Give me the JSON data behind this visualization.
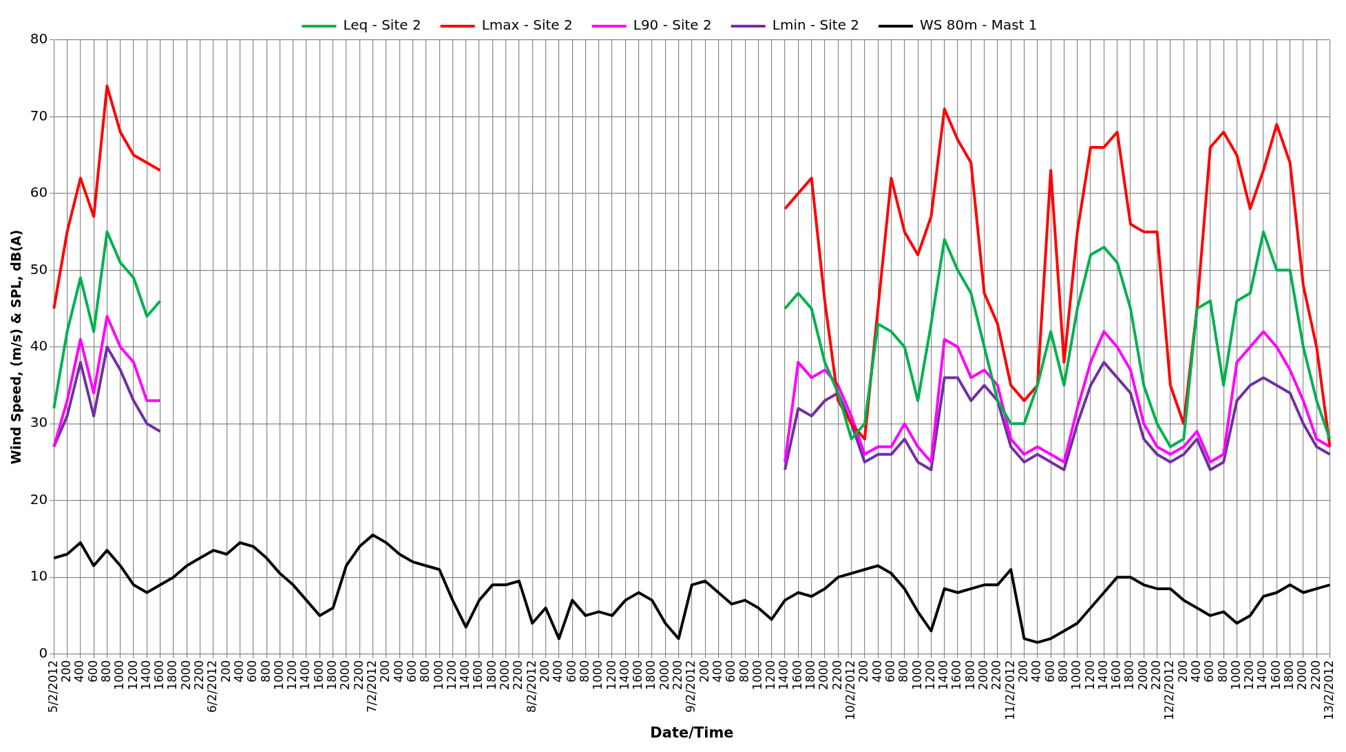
{
  "chart_data": {
    "type": "line",
    "xlabel": "Date/Time",
    "ylabel": "Wind Speed, (m/s) & SPL, dB(A)",
    "legend": "top",
    "grid": true,
    "marker": "none",
    "line_style": "solid",
    "ylim": [
      0,
      80
    ],
    "yticks": [
      0,
      10,
      20,
      30,
      40,
      50,
      60,
      70,
      80
    ],
    "categories": [
      "5/2/2012",
      "200",
      "400",
      "600",
      "800",
      "1000",
      "1200",
      "1400",
      "1600",
      "1800",
      "2000",
      "2200",
      "6/2/2012",
      "200",
      "400",
      "600",
      "800",
      "1000",
      "1200",
      "1400",
      "1600",
      "1800",
      "2000",
      "2200",
      "7/2/2012",
      "200",
      "400",
      "600",
      "800",
      "1000",
      "1200",
      "1400",
      "1600",
      "1800",
      "2000",
      "2200",
      "8/2/2012",
      "200",
      "400",
      "600",
      "800",
      "1000",
      "1200",
      "1400",
      "1600",
      "1800",
      "2000",
      "2200",
      "9/2/2012",
      "200",
      "400",
      "600",
      "800",
      "1000",
      "1200",
      "1400",
      "1600",
      "1800",
      "2000",
      "2200",
      "10/2/2012",
      "200",
      "400",
      "600",
      "800",
      "1000",
      "1200",
      "1400",
      "1600",
      "1800",
      "2000",
      "2200",
      "11/2/2012",
      "200",
      "400",
      "600",
      "800",
      "1000",
      "1200",
      "1400",
      "1600",
      "1800",
      "2000",
      "2200",
      "12/2/2012",
      "200",
      "400",
      "600",
      "800",
      "1000",
      "1200",
      "1400",
      "1600",
      "1800",
      "2000",
      "2200",
      "13/2/2012"
    ],
    "series": [
      {
        "name": "Leq - Site 2",
        "color": "#00b050",
        "values": [
          32,
          42,
          49,
          42,
          55,
          51,
          49,
          44,
          46,
          null,
          null,
          null,
          null,
          null,
          null,
          null,
          null,
          null,
          null,
          null,
          null,
          null,
          null,
          null,
          null,
          null,
          null,
          null,
          null,
          null,
          null,
          null,
          null,
          null,
          null,
          null,
          null,
          null,
          null,
          null,
          null,
          null,
          null,
          null,
          null,
          null,
          null,
          null,
          null,
          null,
          null,
          null,
          null,
          null,
          null,
          45,
          47,
          45,
          38,
          34,
          28,
          30,
          43,
          42,
          40,
          33,
          43,
          54,
          50,
          47,
          40,
          33,
          30,
          30,
          35,
          42,
          35,
          45,
          52,
          53,
          51,
          45,
          35,
          30,
          27,
          28,
          45,
          46,
          35,
          46,
          47,
          55,
          50,
          50,
          40,
          33,
          28
        ]
      },
      {
        "name": "Lmax - Site 2",
        "color": "#ff0000",
        "values": [
          45,
          55,
          62,
          57,
          74,
          68,
          65,
          64,
          63,
          null,
          null,
          null,
          null,
          null,
          null,
          null,
          null,
          null,
          null,
          null,
          null,
          null,
          null,
          null,
          null,
          null,
          null,
          null,
          null,
          null,
          null,
          null,
          null,
          null,
          null,
          null,
          null,
          null,
          null,
          null,
          null,
          null,
          null,
          null,
          null,
          null,
          null,
          null,
          null,
          null,
          null,
          null,
          null,
          null,
          null,
          58,
          60,
          62,
          46,
          33,
          30,
          28,
          45,
          62,
          55,
          52,
          57,
          71,
          67,
          64,
          47,
          43,
          35,
          33,
          35,
          63,
          38,
          55,
          66,
          66,
          68,
          56,
          55,
          55,
          35,
          30,
          45,
          66,
          68,
          65,
          58,
          63,
          69,
          64,
          48,
          40,
          27
        ]
      },
      {
        "name": "L90 - Site 2",
        "color": "#ff00ff",
        "values": [
          27,
          33,
          41,
          34,
          44,
          40,
          38,
          33,
          33,
          null,
          null,
          null,
          null,
          null,
          null,
          null,
          null,
          null,
          null,
          null,
          null,
          null,
          null,
          null,
          null,
          null,
          null,
          null,
          null,
          null,
          null,
          null,
          null,
          null,
          null,
          null,
          null,
          null,
          null,
          null,
          null,
          null,
          null,
          null,
          null,
          null,
          null,
          null,
          null,
          null,
          null,
          null,
          null,
          null,
          null,
          25,
          38,
          36,
          37,
          35,
          31,
          26,
          27,
          27,
          30,
          27,
          25,
          41,
          40,
          36,
          37,
          35,
          28,
          26,
          27,
          26,
          25,
          32,
          38,
          42,
          40,
          37,
          30,
          27,
          26,
          27,
          29,
          25,
          26,
          38,
          40,
          42,
          40,
          37,
          33,
          28,
          27
        ]
      },
      {
        "name": "Lmin - Site 2",
        "color": "#7030a0",
        "values": [
          27,
          31,
          38,
          31,
          40,
          37,
          33,
          30,
          29,
          null,
          null,
          null,
          null,
          null,
          null,
          null,
          null,
          null,
          null,
          null,
          null,
          null,
          null,
          null,
          null,
          null,
          null,
          null,
          null,
          null,
          null,
          null,
          null,
          null,
          null,
          null,
          null,
          null,
          null,
          null,
          null,
          null,
          null,
          null,
          null,
          null,
          null,
          null,
          null,
          null,
          null,
          null,
          null,
          null,
          null,
          24,
          32,
          31,
          33,
          34,
          30,
          25,
          26,
          26,
          28,
          25,
          24,
          36,
          36,
          33,
          35,
          33,
          27,
          25,
          26,
          25,
          24,
          30,
          35,
          38,
          36,
          34,
          28,
          26,
          25,
          26,
          28,
          24,
          25,
          33,
          35,
          36,
          35,
          34,
          30,
          27,
          26
        ]
      },
      {
        "name": "WS 80m - Mast 1",
        "color": "#000000",
        "values": [
          12.5,
          13,
          14.5,
          11.5,
          13.5,
          11.5,
          9,
          8,
          9,
          10,
          11.5,
          12.5,
          13.5,
          13,
          14.5,
          14,
          12.5,
          10.5,
          9,
          7,
          5,
          6,
          11.5,
          14,
          15.5,
          14.5,
          13,
          12,
          11.5,
          11,
          7,
          3.5,
          7,
          9,
          9,
          9.5,
          4,
          6,
          2,
          7,
          5,
          5.5,
          5,
          7,
          8,
          7,
          4,
          2,
          9,
          9.5,
          8,
          6.5,
          7,
          6,
          4.5,
          7,
          8,
          7.5,
          8.5,
          10,
          10.5,
          11,
          11.5,
          10.5,
          8.5,
          5.5,
          3,
          8.5,
          8,
          8.5,
          9,
          9,
          11,
          2,
          1.5,
          2,
          3,
          4,
          6,
          8,
          10,
          10,
          9,
          8.5,
          8.5,
          7,
          6,
          5,
          5.5,
          4,
          5,
          7.5,
          8,
          9,
          8,
          8.5,
          9
        ]
      }
    ]
  }
}
